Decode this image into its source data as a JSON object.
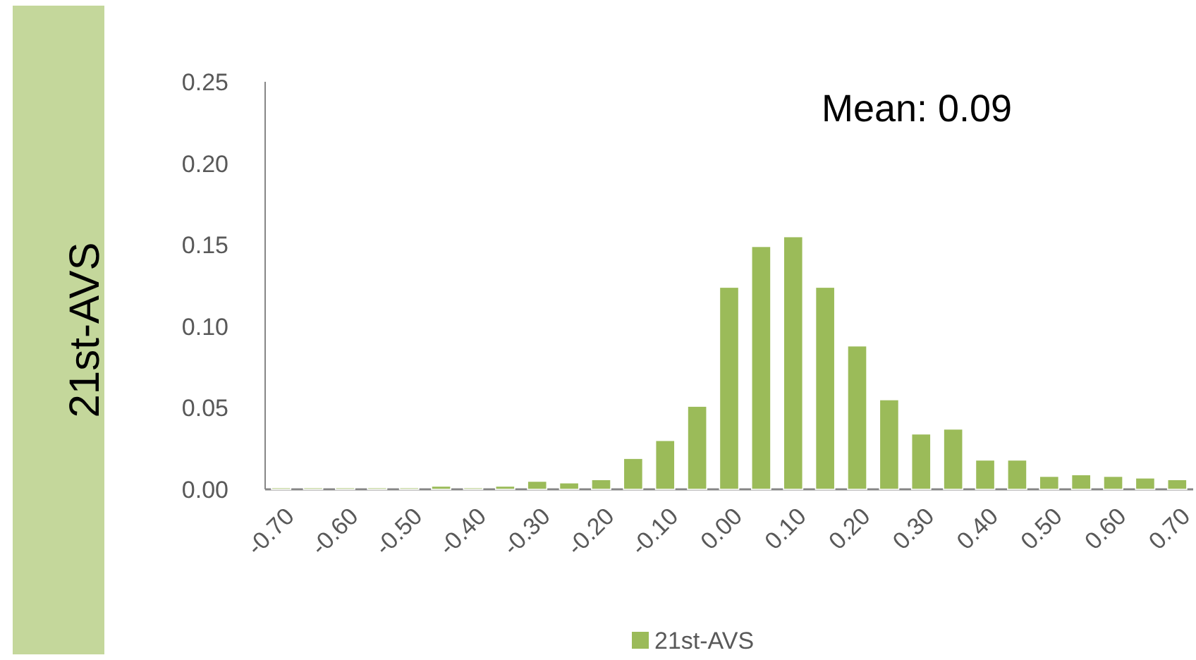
{
  "chart_data": {
    "type": "bar",
    "ylabel": "21st-AVS",
    "categories": [
      "-0.70",
      null,
      "-0.60",
      null,
      "-0.50",
      null,
      "-0.40",
      null,
      "-0.30",
      null,
      "-0.20",
      null,
      "-0.10",
      null,
      "0.00",
      null,
      "0.10",
      null,
      "0.20",
      null,
      "0.30",
      null,
      "0.40",
      null,
      "0.50",
      null,
      "0.60",
      null,
      "0.70"
    ],
    "series": [
      {
        "name": "21st-AVS",
        "color": "#9bbb59",
        "values": [
          0.001,
          0.001,
          0.001,
          0.001,
          0.001,
          0.002,
          0.001,
          0.002,
          0.005,
          0.004,
          0.006,
          0.019,
          0.03,
          0.051,
          0.124,
          0.149,
          0.155,
          0.124,
          0.088,
          0.055,
          0.034,
          0.037,
          0.018,
          0.018,
          0.008,
          0.009,
          0.008,
          0.007,
          0.006
        ]
      }
    ],
    "ylim": [
      0,
      0.25
    ],
    "yticks": [
      {
        "value": 0,
        "label": "0.00"
      },
      {
        "value": 0.05,
        "label": "0.05"
      },
      {
        "value": 0.1,
        "label": "0.10"
      },
      {
        "value": 0.15,
        "label": "0.15"
      },
      {
        "value": 0.2,
        "label": "0.20"
      },
      {
        "value": 0.25,
        "label": "0.25"
      }
    ],
    "annotations": [
      "Mean: 0.09"
    ],
    "legend": "bottom",
    "grid": false
  }
}
